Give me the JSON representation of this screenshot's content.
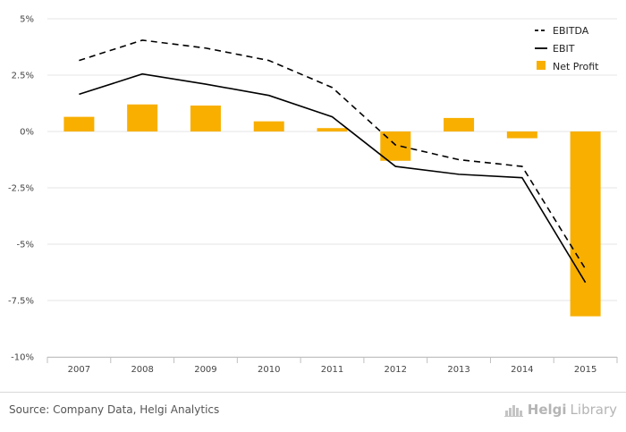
{
  "chart_data": {
    "type": "bar+line",
    "categories": [
      "2007",
      "2008",
      "2009",
      "2010",
      "2011",
      "2012",
      "2013",
      "2014",
      "2015"
    ],
    "series": [
      {
        "name": "EBITDA",
        "kind": "line",
        "style": "dashed",
        "color": "#000000",
        "values": [
          3.15,
          4.05,
          3.7,
          3.15,
          1.95,
          -0.6,
          -1.25,
          -1.55,
          -6.1
        ]
      },
      {
        "name": "EBIT",
        "kind": "line",
        "style": "solid",
        "color": "#000000",
        "values": [
          1.65,
          2.55,
          2.1,
          1.6,
          0.65,
          -1.55,
          -1.9,
          -2.05,
          -6.7
        ]
      },
      {
        "name": "Net Profit",
        "kind": "bar",
        "color": "#F8AF00",
        "values": [
          0.65,
          1.2,
          1.15,
          0.45,
          0.15,
          -1.3,
          0.6,
          -0.3,
          -8.2
        ]
      }
    ],
    "ylim": [
      -10,
      5
    ],
    "yticks": [
      5,
      2.5,
      0,
      -2.5,
      -5,
      -7.5,
      -10
    ],
    "ytick_labels": [
      "5%",
      "2.5%",
      "0%",
      "-2.5%",
      "-5%",
      "-7.5%",
      "-10%"
    ],
    "grid": "horizontal",
    "legend_position": "top-right",
    "title": "",
    "xlabel": "",
    "ylabel": ""
  },
  "footer": {
    "source": "Source: Company Data, Helgi Analytics",
    "brand_strong": "Helgi",
    "brand_light": "Library"
  },
  "colors": {
    "bar": "#F8AF00",
    "line": "#000000",
    "grid": "#e5e5e5"
  }
}
